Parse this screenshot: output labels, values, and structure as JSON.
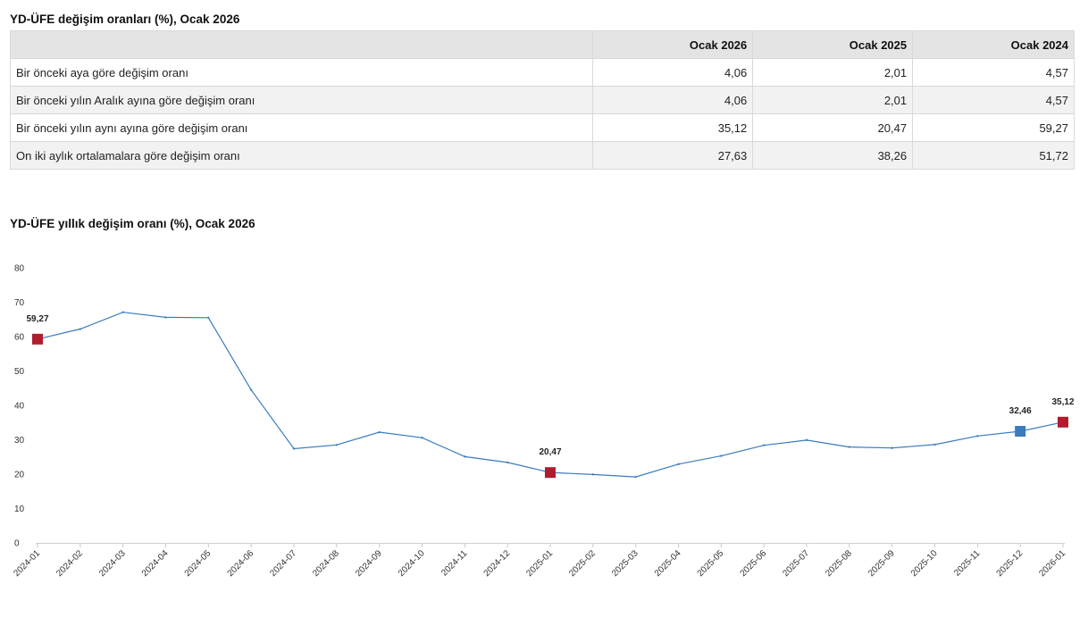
{
  "table": {
    "title": "YD-ÜFE değişim oranları (%), Ocak 2026",
    "headers": [
      "",
      "Ocak 2026",
      "Ocak 2025",
      "Ocak 2024"
    ],
    "rows": [
      {
        "label": "Bir önceki aya göre değişim oranı",
        "values": [
          "4,06",
          "2,01",
          "4,57"
        ]
      },
      {
        "label": "Bir önceki yılın Aralık ayına göre değişim oranı",
        "values": [
          "4,06",
          "2,01",
          "4,57"
        ]
      },
      {
        "label": "Bir önceki yılın aynı ayına göre değişim oranı",
        "values": [
          "35,12",
          "20,47",
          "59,27"
        ]
      },
      {
        "label": "On iki aylık ortalamalara göre değişim oranı",
        "values": [
          "27,63",
          "38,26",
          "51,72"
        ]
      }
    ]
  },
  "chart_title": "YD-ÜFE yıllık değişim oranı (%), Ocak 2026",
  "chart_data": {
    "type": "line",
    "x": [
      "2024-01",
      "2024-02",
      "2024-03",
      "2024-04",
      "2024-05",
      "2024-06",
      "2024-07",
      "2024-08",
      "2024-09",
      "2024-10",
      "2024-11",
      "2024-12",
      "2025-01",
      "2025-02",
      "2025-03",
      "2025-04",
      "2025-05",
      "2025-06",
      "2025-07",
      "2025-08",
      "2025-09",
      "2025-10",
      "2025-11",
      "2025-12",
      "2026-01"
    ],
    "series": [
      {
        "values": [
          59.27,
          62.2,
          67.1,
          65.6,
          65.5,
          44.5,
          27.4,
          28.5,
          32.2,
          30.6,
          25.1,
          23.4,
          20.47,
          19.9,
          19.2,
          22.9,
          25.3,
          28.4,
          29.9,
          27.9,
          27.6,
          28.6,
          31.1,
          32.46,
          35.12
        ]
      }
    ],
    "ylim": [
      0,
      80
    ],
    "yticks": [
      0,
      10,
      20,
      30,
      40,
      50,
      60,
      70,
      80
    ],
    "grid": false,
    "line_color": "#3a7bbf",
    "highlights": [
      {
        "index": 0,
        "label": "59,27",
        "color": "#b01c2e"
      },
      {
        "index": 12,
        "label": "20,47",
        "color": "#b01c2e"
      },
      {
        "index": 23,
        "label": "32,46",
        "color": "#3a7bbf"
      },
      {
        "index": 24,
        "label": "35,12",
        "color": "#b01c2e"
      }
    ]
  }
}
